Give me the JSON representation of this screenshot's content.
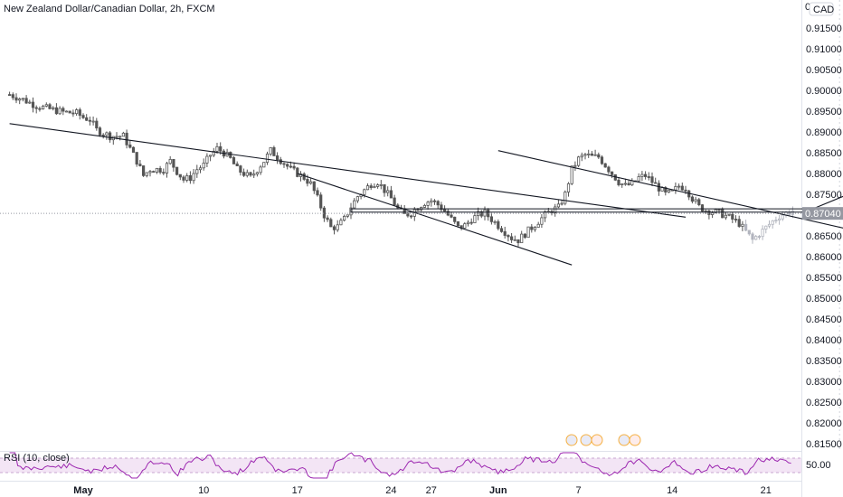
{
  "header": {
    "title": "New Zealand Dollar/Canadian Dollar, 2h, FXCM"
  },
  "currency_badge": "CAD",
  "price_axis_top_label": "0",
  "last_price_label": "0.87040",
  "rsi": {
    "label": "RSI (10, close)",
    "value_label": "50.00"
  },
  "colors": {
    "candle": "#555555",
    "candle_recent": "#b2b5be",
    "trendline": "#131722",
    "rsi_line": "#9c27b0",
    "rsi_band": "#f3e5f5",
    "price_tag_bg": "#9598a1"
  },
  "chart_data": {
    "type": "candlestick",
    "title": "New Zealand Dollar/Canadian Dollar, 2h, FXCM",
    "y_ticks": [
      "0.91500",
      "0.91000",
      "0.90500",
      "0.90000",
      "0.89500",
      "0.89000",
      "0.88500",
      "0.88000",
      "0.87500",
      "0.87000",
      "0.86500",
      "0.86000",
      "0.85500",
      "0.85000",
      "0.84500",
      "0.84000",
      "0.83500",
      "0.83000",
      "0.82500",
      "0.82000",
      "0.81500"
    ],
    "ylim": [
      0.8115,
      0.9195
    ],
    "x_ticks": [
      {
        "label": "May",
        "day": 1,
        "bold": true
      },
      {
        "label": "10",
        "day": 10,
        "bold": false
      },
      {
        "label": "17",
        "day": 17,
        "bold": false
      },
      {
        "label": "24",
        "day": 24,
        "bold": false
      },
      {
        "label": "27",
        "day": 27,
        "bold": false
      },
      {
        "label": "Jun",
        "day": 32,
        "bold": true
      },
      {
        "label": "7",
        "day": 38,
        "bold": false
      },
      {
        "label": "14",
        "day": 45,
        "bold": false
      },
      {
        "label": "21",
        "day": 52,
        "bold": false
      }
    ],
    "xlim": [
      -4.5,
      57.5
    ],
    "close_path": [
      [
        -4.5,
        0.899
      ],
      [
        -3.5,
        0.8978
      ],
      [
        -2.5,
        0.8963
      ],
      [
        -1.5,
        0.8955
      ],
      [
        -0.5,
        0.8948
      ],
      [
        0.5,
        0.8945
      ],
      [
        1,
        0.8935
      ],
      [
        1.5,
        0.893
      ],
      [
        2,
        0.8905
      ],
      [
        3,
        0.889
      ],
      [
        4,
        0.889
      ],
      [
        4.5,
        0.886
      ],
      [
        5,
        0.883
      ],
      [
        5.5,
        0.8795
      ],
      [
        6,
        0.881
      ],
      [
        7,
        0.881
      ],
      [
        7.5,
        0.883
      ],
      [
        8,
        0.8805
      ],
      [
        8.5,
        0.8785
      ],
      [
        9,
        0.879
      ],
      [
        9.5,
        0.881
      ],
      [
        10,
        0.882
      ],
      [
        10.5,
        0.8845
      ],
      [
        11,
        0.886
      ],
      [
        11.5,
        0.885
      ],
      [
        12,
        0.8835
      ],
      [
        12.5,
        0.881
      ],
      [
        13,
        0.88
      ],
      [
        13.5,
        0.879
      ],
      [
        14,
        0.881
      ],
      [
        14.5,
        0.883
      ],
      [
        15,
        0.8855
      ],
      [
        15.5,
        0.884
      ],
      [
        16,
        0.8825
      ],
      [
        16.5,
        0.881
      ],
      [
        17,
        0.88
      ],
      [
        17.5,
        0.879
      ],
      [
        18,
        0.8775
      ],
      [
        18.5,
        0.874
      ],
      [
        19,
        0.87
      ],
      [
        19.5,
        0.867
      ],
      [
        20,
        0.8672
      ],
      [
        20.5,
        0.869
      ],
      [
        21,
        0.872
      ],
      [
        21.5,
        0.8745
      ],
      [
        22,
        0.876
      ],
      [
        22.5,
        0.8775
      ],
      [
        23,
        0.878
      ],
      [
        23.5,
        0.876
      ],
      [
        24,
        0.874
      ],
      [
        24.5,
        0.8715
      ],
      [
        25,
        0.87
      ],
      [
        25.5,
        0.8705
      ],
      [
        26,
        0.872
      ],
      [
        26.5,
        0.873
      ],
      [
        27,
        0.8735
      ],
      [
        27.5,
        0.8725
      ],
      [
        28,
        0.871
      ],
      [
        28.5,
        0.869
      ],
      [
        29,
        0.867
      ],
      [
        29.5,
        0.8675
      ],
      [
        30,
        0.869
      ],
      [
        30.5,
        0.87
      ],
      [
        31,
        0.8705
      ],
      [
        31.5,
        0.869
      ],
      [
        32,
        0.8675
      ],
      [
        32.5,
        0.866
      ],
      [
        33,
        0.8645
      ],
      [
        33.5,
        0.864
      ],
      [
        34,
        0.8655
      ],
      [
        34.5,
        0.867
      ],
      [
        35,
        0.8685
      ],
      [
        35.5,
        0.87
      ],
      [
        36,
        0.8712
      ],
      [
        36.5,
        0.8718
      ],
      [
        37,
        0.875
      ],
      [
        37.5,
        0.881
      ],
      [
        38,
        0.8835
      ],
      [
        38.5,
        0.8845
      ],
      [
        39,
        0.884
      ],
      [
        39.5,
        0.884
      ],
      [
        40,
        0.882
      ],
      [
        40.5,
        0.88
      ],
      [
        41,
        0.878
      ],
      [
        41.5,
        0.877
      ],
      [
        42,
        0.8775
      ],
      [
        42.5,
        0.879
      ],
      [
        43,
        0.8795
      ],
      [
        43.5,
        0.878
      ],
      [
        44,
        0.8765
      ],
      [
        44.5,
        0.875
      ],
      [
        45,
        0.8755
      ],
      [
        45.5,
        0.877
      ],
      [
        46,
        0.8765
      ],
      [
        46.5,
        0.874
      ],
      [
        47,
        0.872
      ],
      [
        47.5,
        0.8712
      ],
      [
        48,
        0.8708
      ],
      [
        48.5,
        0.8705
      ],
      [
        49,
        0.8698
      ],
      [
        49.5,
        0.869
      ],
      [
        50,
        0.868
      ],
      [
        50.5,
        0.866
      ],
      [
        51,
        0.864
      ],
      [
        51.5,
        0.8655
      ],
      [
        52,
        0.867
      ],
      [
        52.5,
        0.8685
      ],
      [
        53,
        0.8698
      ],
      [
        53.5,
        0.8705
      ],
      [
        54,
        0.871
      ]
    ],
    "recent_from": 50.5,
    "last_price": 0.8704,
    "annotations": {
      "long_trendline": [
        [
          -4.5,
          0.892
        ],
        [
          46,
          0.8695
        ]
      ],
      "channel_lower": [
        [
          17,
          0.88
        ],
        [
          37.5,
          0.858
        ]
      ],
      "short_trendline_upper": [
        [
          32,
          0.8855
        ],
        [
          59,
          0.866
        ]
      ],
      "zone_rect": {
        "x0": 21,
        "x1": 59.5,
        "y0": 0.8707,
        "y1": 0.8715
      },
      "projection_path": [
        [
          55.5,
          0.8715
        ],
        [
          58,
          0.8748
        ],
        [
          59.5,
          0.8718
        ],
        [
          63,
          0.885
        ]
      ],
      "dotted_vlines": [
        57.5,
        58,
        58.5,
        59,
        59.5,
        60,
        60.5,
        61,
        61.5,
        62,
        62.5,
        63
      ]
    }
  }
}
